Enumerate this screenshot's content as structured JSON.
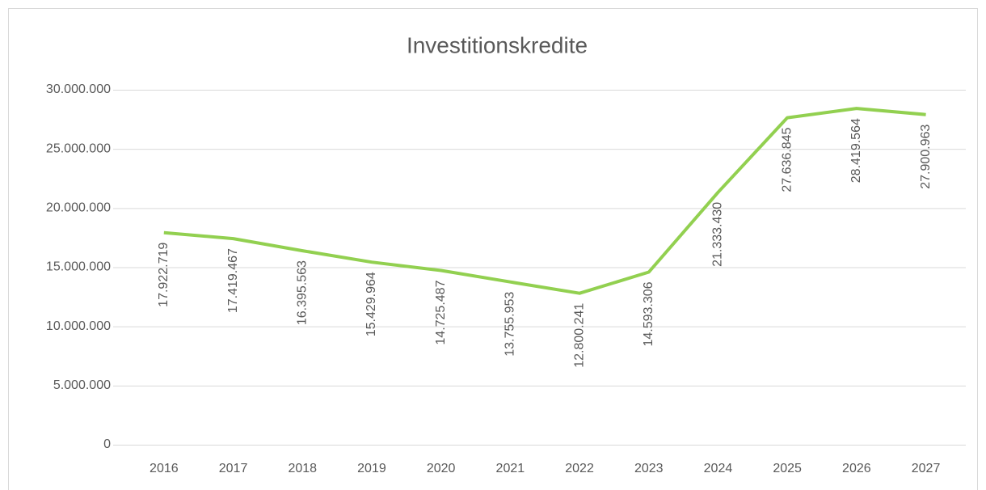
{
  "chart_data": {
    "type": "line",
    "title": "Investitionskredite",
    "categories": [
      "2016",
      "2017",
      "2018",
      "2019",
      "2020",
      "2021",
      "2022",
      "2023",
      "2024",
      "2025",
      "2026",
      "2027"
    ],
    "series": [
      {
        "name": "Investitionskredite",
        "color": "#92d050",
        "values": [
          17922719,
          17419467,
          16395563,
          15429964,
          14725487,
          13755953,
          12800241,
          14593306,
          21333430,
          27636845,
          28419564,
          27900963
        ],
        "value_labels": [
          "17.922.719",
          "17.419.467",
          "16.395.563",
          "15.429.964",
          "14.725.487",
          "13.755.953",
          "12.800.241",
          "14.593.306",
          "21.333.430",
          "27.636.845",
          "28.419.564",
          "27.900.963"
        ]
      }
    ],
    "ylim": [
      0,
      30000000
    ],
    "yticks": [
      0,
      {
        "value": 5000000,
        "label": "5.000.000"
      },
      {
        "value": 10000000,
        "label": "10.000.000"
      },
      {
        "value": 15000000,
        "label": "15.000.000"
      },
      {
        "value": 20000000,
        "label": "20.000.000"
      },
      {
        "value": 25000000,
        "label": "25.000.000"
      },
      {
        "value": 30000000,
        "label": "30.000.000"
      }
    ],
    "grid": true
  }
}
